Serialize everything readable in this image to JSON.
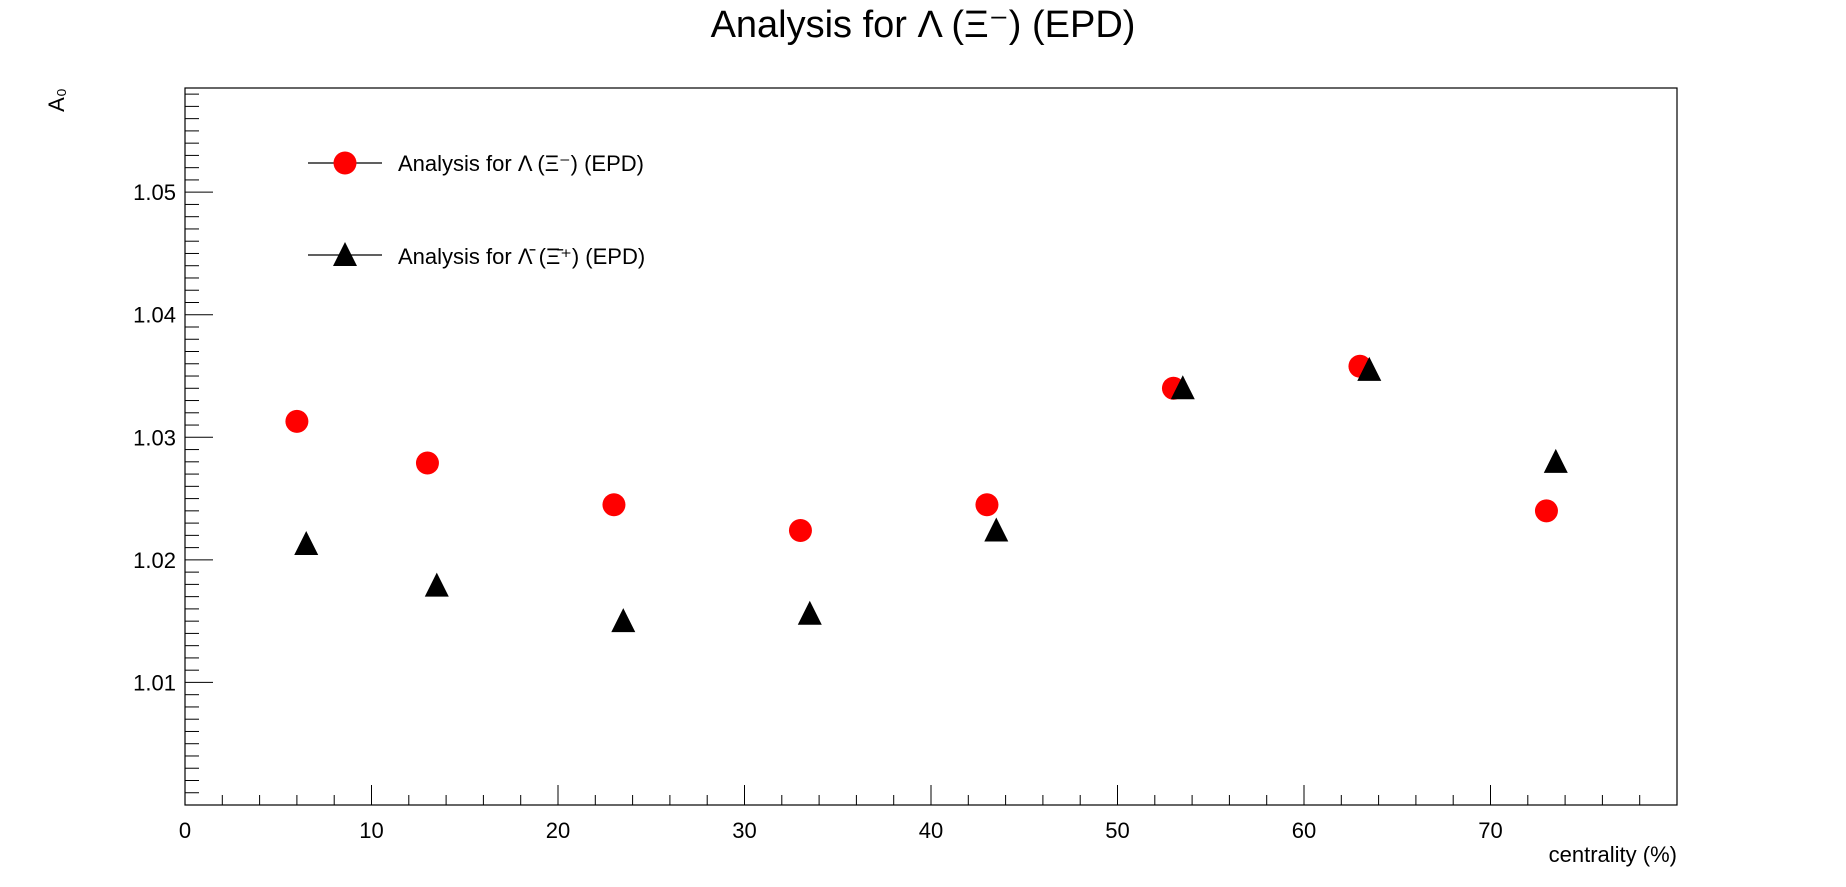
{
  "chart_data": {
    "type": "scatter",
    "title": "Analysis for Λ (Ξ⁻) (EPD)",
    "xlabel": "centrality (%)",
    "ylabel": "A₀",
    "xlim": [
      0,
      80
    ],
    "ylim": [
      1.0,
      1.0585
    ],
    "x_ticks": [
      "0",
      "10",
      "20",
      "30",
      "40",
      "50",
      "60",
      "70"
    ],
    "y_ticks": [
      "1.01",
      "1.02",
      "1.03",
      "1.04",
      "1.05"
    ],
    "legend_position": "top-left",
    "grid": false,
    "series": [
      {
        "name": "Analysis for Λ (Ξ⁻) (EPD)",
        "marker": "circle",
        "color": "#ff0000",
        "points": [
          {
            "x": 6,
            "y": 1.0313
          },
          {
            "x": 13,
            "y": 1.0279
          },
          {
            "x": 23,
            "y": 1.0245
          },
          {
            "x": 33,
            "y": 1.0224
          },
          {
            "x": 43,
            "y": 1.0245
          },
          {
            "x": 53,
            "y": 1.034
          },
          {
            "x": 63,
            "y": 1.0358
          },
          {
            "x": 73,
            "y": 1.024
          }
        ]
      },
      {
        "name": "Analysis for Λ̄ (Ξ̄⁺) (EPD)",
        "marker": "triangle",
        "color": "#000000",
        "points": [
          {
            "x": 6.5,
            "y": 1.0213
          },
          {
            "x": 13.5,
            "y": 1.0179
          },
          {
            "x": 23.5,
            "y": 1.015
          },
          {
            "x": 33.5,
            "y": 1.0156
          },
          {
            "x": 43.5,
            "y": 1.0224
          },
          {
            "x": 53.5,
            "y": 1.034
          },
          {
            "x": 63.5,
            "y": 1.0355
          },
          {
            "x": 73.5,
            "y": 1.028
          }
        ]
      }
    ]
  }
}
